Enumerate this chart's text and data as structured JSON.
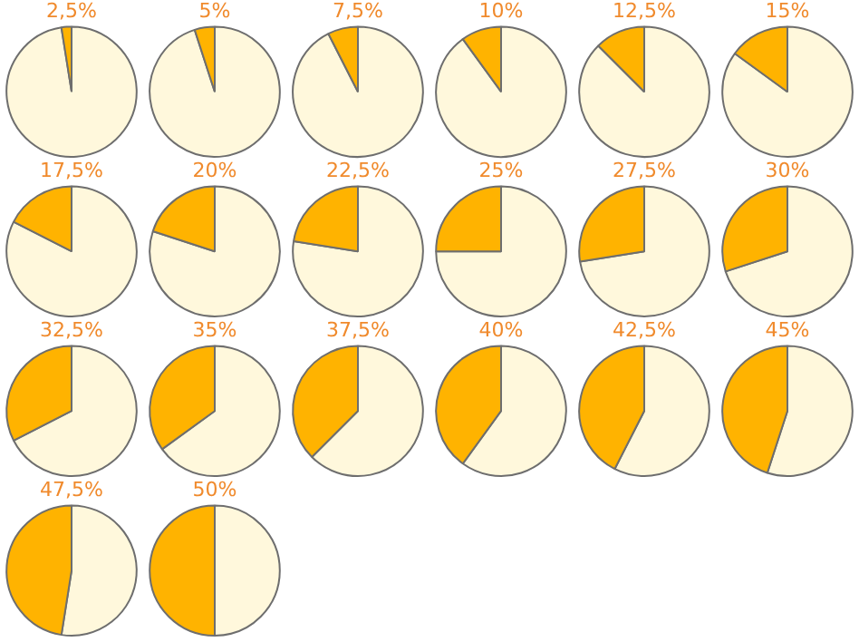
{
  "chart_data": [
    {
      "type": "pie",
      "title": "2,5%",
      "categories": [
        null,
        null
      ],
      "values": [
        97.5,
        2.5
      ],
      "colors": [
        "#fff8dc",
        "#ffb300"
      ]
    },
    {
      "type": "pie",
      "title": "5%",
      "categories": [
        null,
        null
      ],
      "values": [
        95,
        5
      ],
      "colors": [
        "#fff8dc",
        "#ffb300"
      ]
    },
    {
      "type": "pie",
      "title": "7,5%",
      "categories": [
        null,
        null
      ],
      "values": [
        92.5,
        7.5
      ],
      "colors": [
        "#fff8dc",
        "#ffb300"
      ]
    },
    {
      "type": "pie",
      "title": "10%",
      "categories": [
        null,
        null
      ],
      "values": [
        90,
        10
      ],
      "colors": [
        "#fff8dc",
        "#ffb300"
      ]
    },
    {
      "type": "pie",
      "title": "12,5%",
      "categories": [
        null,
        null
      ],
      "values": [
        87.5,
        12.5
      ],
      "colors": [
        "#fff8dc",
        "#ffb300"
      ]
    },
    {
      "type": "pie",
      "title": "15%",
      "categories": [
        null,
        null
      ],
      "values": [
        85,
        15
      ],
      "colors": [
        "#fff8dc",
        "#ffb300"
      ]
    },
    {
      "type": "pie",
      "title": "17,5%",
      "categories": [
        null,
        null
      ],
      "values": [
        82.5,
        17.5
      ],
      "colors": [
        "#fff8dc",
        "#ffb300"
      ]
    },
    {
      "type": "pie",
      "title": "20%",
      "categories": [
        null,
        null
      ],
      "values": [
        80,
        20
      ],
      "colors": [
        "#fff8dc",
        "#ffb300"
      ]
    },
    {
      "type": "pie",
      "title": "22,5%",
      "categories": [
        null,
        null
      ],
      "values": [
        77.5,
        22.5
      ],
      "colors": [
        "#fff8dc",
        "#ffb300"
      ]
    },
    {
      "type": "pie",
      "title": "25%",
      "categories": [
        null,
        null
      ],
      "values": [
        75,
        25
      ],
      "colors": [
        "#fff8dc",
        "#ffb300"
      ]
    },
    {
      "type": "pie",
      "title": "27,5%",
      "categories": [
        null,
        null
      ],
      "values": [
        72.5,
        27.5
      ],
      "colors": [
        "#fff8dc",
        "#ffb300"
      ]
    },
    {
      "type": "pie",
      "title": "30%",
      "categories": [
        null,
        null
      ],
      "values": [
        70,
        30
      ],
      "colors": [
        "#fff8dc",
        "#ffb300"
      ]
    },
    {
      "type": "pie",
      "title": "32,5%",
      "categories": [
        null,
        null
      ],
      "values": [
        67.5,
        32.5
      ],
      "colors": [
        "#fff8dc",
        "#ffb300"
      ]
    },
    {
      "type": "pie",
      "title": "35%",
      "categories": [
        null,
        null
      ],
      "values": [
        65,
        35
      ],
      "colors": [
        "#fff8dc",
        "#ffb300"
      ]
    },
    {
      "type": "pie",
      "title": "37,5%",
      "categories": [
        null,
        null
      ],
      "values": [
        62.5,
        37.5
      ],
      "colors": [
        "#fff8dc",
        "#ffb300"
      ]
    },
    {
      "type": "pie",
      "title": "40%",
      "categories": [
        null,
        null
      ],
      "values": [
        60,
        40
      ],
      "colors": [
        "#fff8dc",
        "#ffb300"
      ]
    },
    {
      "type": "pie",
      "title": "42,5%",
      "categories": [
        null,
        null
      ],
      "values": [
        57.5,
        42.5
      ],
      "colors": [
        "#fff8dc",
        "#ffb300"
      ]
    },
    {
      "type": "pie",
      "title": "45%",
      "categories": [
        null,
        null
      ],
      "values": [
        55,
        45
      ],
      "colors": [
        "#fff8dc",
        "#ffb300"
      ]
    },
    {
      "type": "pie",
      "title": "47,5%",
      "categories": [
        null,
        null
      ],
      "values": [
        52.5,
        47.5
      ],
      "colors": [
        "#fff8dc",
        "#ffb300"
      ]
    },
    {
      "type": "pie",
      "title": "50%",
      "categories": [
        null,
        null
      ],
      "values": [
        50,
        50
      ],
      "colors": [
        "#fff8dc",
        "#ffb300"
      ]
    }
  ]
}
